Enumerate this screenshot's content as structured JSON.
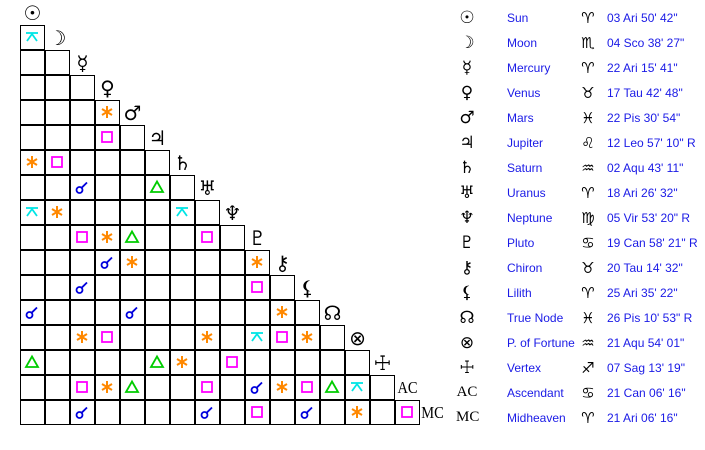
{
  "aspect_styles": {
    "Q": {
      "name": "quincunx",
      "color": "#00e5e5"
    },
    "S": {
      "name": "sextile",
      "color": "#ff8800"
    },
    "R": {
      "name": "square",
      "color": "#ff00ff"
    },
    "T": {
      "name": "trine",
      "color": "#00cc00"
    },
    "C": {
      "name": "conjunction",
      "color": "#0000dd"
    }
  },
  "planets": [
    {
      "name": "Sun",
      "glyph": "☉",
      "sign_glyph": "♈",
      "position": "03 Ari 50' 42\""
    },
    {
      "name": "Moon",
      "glyph": "☽",
      "sign_glyph": "♏",
      "position": "04 Sco 38' 27\""
    },
    {
      "name": "Mercury",
      "glyph": "☿",
      "sign_glyph": "♈",
      "position": "22 Ari 15' 41\""
    },
    {
      "name": "Venus",
      "glyph": "♀",
      "sign_glyph": "♉",
      "position": "17 Tau 42' 48\""
    },
    {
      "name": "Mars",
      "glyph": "♂",
      "sign_glyph": "♓",
      "position": "22 Pis 30' 54\""
    },
    {
      "name": "Jupiter",
      "glyph": "♃",
      "sign_glyph": "♌",
      "position": "12 Leo 57' 10\" R"
    },
    {
      "name": "Saturn",
      "glyph": "♄",
      "sign_glyph": "♒",
      "position": "02 Aqu 43' 11\""
    },
    {
      "name": "Uranus",
      "glyph": "♅",
      "sign_glyph": "♈",
      "position": "18 Ari 26' 32\""
    },
    {
      "name": "Neptune",
      "glyph": "♆",
      "sign_glyph": "♍",
      "position": "05 Vir 53' 20\" R"
    },
    {
      "name": "Pluto",
      "glyph": "♇",
      "sign_glyph": "♋",
      "position": "19 Can 58' 21\" R"
    },
    {
      "name": "Chiron",
      "glyph": "⚷",
      "sign_glyph": "♉",
      "position": "20 Tau 14' 32\""
    },
    {
      "name": "Lilith",
      "glyph": "⚸",
      "sign_glyph": "♈",
      "position": "25 Ari 35' 22\""
    },
    {
      "name": "True Node",
      "glyph": "☊",
      "sign_glyph": "♓",
      "position": "26 Pis 10' 53\" R"
    },
    {
      "name": "P. of Fortune",
      "glyph": "⊗",
      "sign_glyph": "♒",
      "position": "21 Aqu 54' 01\""
    },
    {
      "name": "Vertex",
      "glyph": "☩",
      "sign_glyph": "♐",
      "position": "07 Sag 13' 19\""
    },
    {
      "name": "Ascendant",
      "glyph": "AC",
      "sign_glyph": "♋",
      "position": "21 Can 06' 16\""
    },
    {
      "name": "Midheaven",
      "glyph": "MC",
      "sign_glyph": "♈",
      "position": "21 Ari 06' 16\""
    }
  ],
  "aspect_grid": [
    [
      "Q"
    ],
    [
      "",
      ""
    ],
    [
      "",
      "",
      ""
    ],
    [
      "",
      "",
      "",
      "S"
    ],
    [
      "",
      "",
      "",
      "R",
      ""
    ],
    [
      "S",
      "R",
      "",
      "",
      "",
      ""
    ],
    [
      "",
      "",
      "C",
      "",
      "",
      "T",
      ""
    ],
    [
      "Q",
      "S",
      "",
      "",
      "",
      "",
      "Q",
      ""
    ],
    [
      "",
      "",
      "R",
      "S",
      "T",
      "",
      "",
      "R",
      ""
    ],
    [
      "",
      "",
      "",
      "C",
      "S",
      "",
      "",
      "",
      "",
      "S"
    ],
    [
      "",
      "",
      "C",
      "",
      "",
      "",
      "",
      "",
      "",
      "R",
      ""
    ],
    [
      "C",
      "",
      "",
      "",
      "C",
      "",
      "",
      "",
      "",
      "",
      "S",
      ""
    ],
    [
      "",
      "",
      "S",
      "R",
      "",
      "",
      "",
      "S",
      "",
      "Q",
      "R",
      "S",
      ""
    ],
    [
      "T",
      "",
      "",
      "",
      "",
      "T",
      "S",
      "",
      "R",
      "",
      "",
      "",
      "",
      ""
    ],
    [
      "",
      "",
      "R",
      "S",
      "T",
      "",
      "",
      "R",
      "",
      "C",
      "S",
      "R",
      "T",
      "Q",
      ""
    ],
    [
      "",
      "",
      "C",
      "",
      "",
      "",
      "",
      "C",
      "",
      "R",
      "",
      "C",
      "",
      "S",
      "",
      "R"
    ]
  ]
}
